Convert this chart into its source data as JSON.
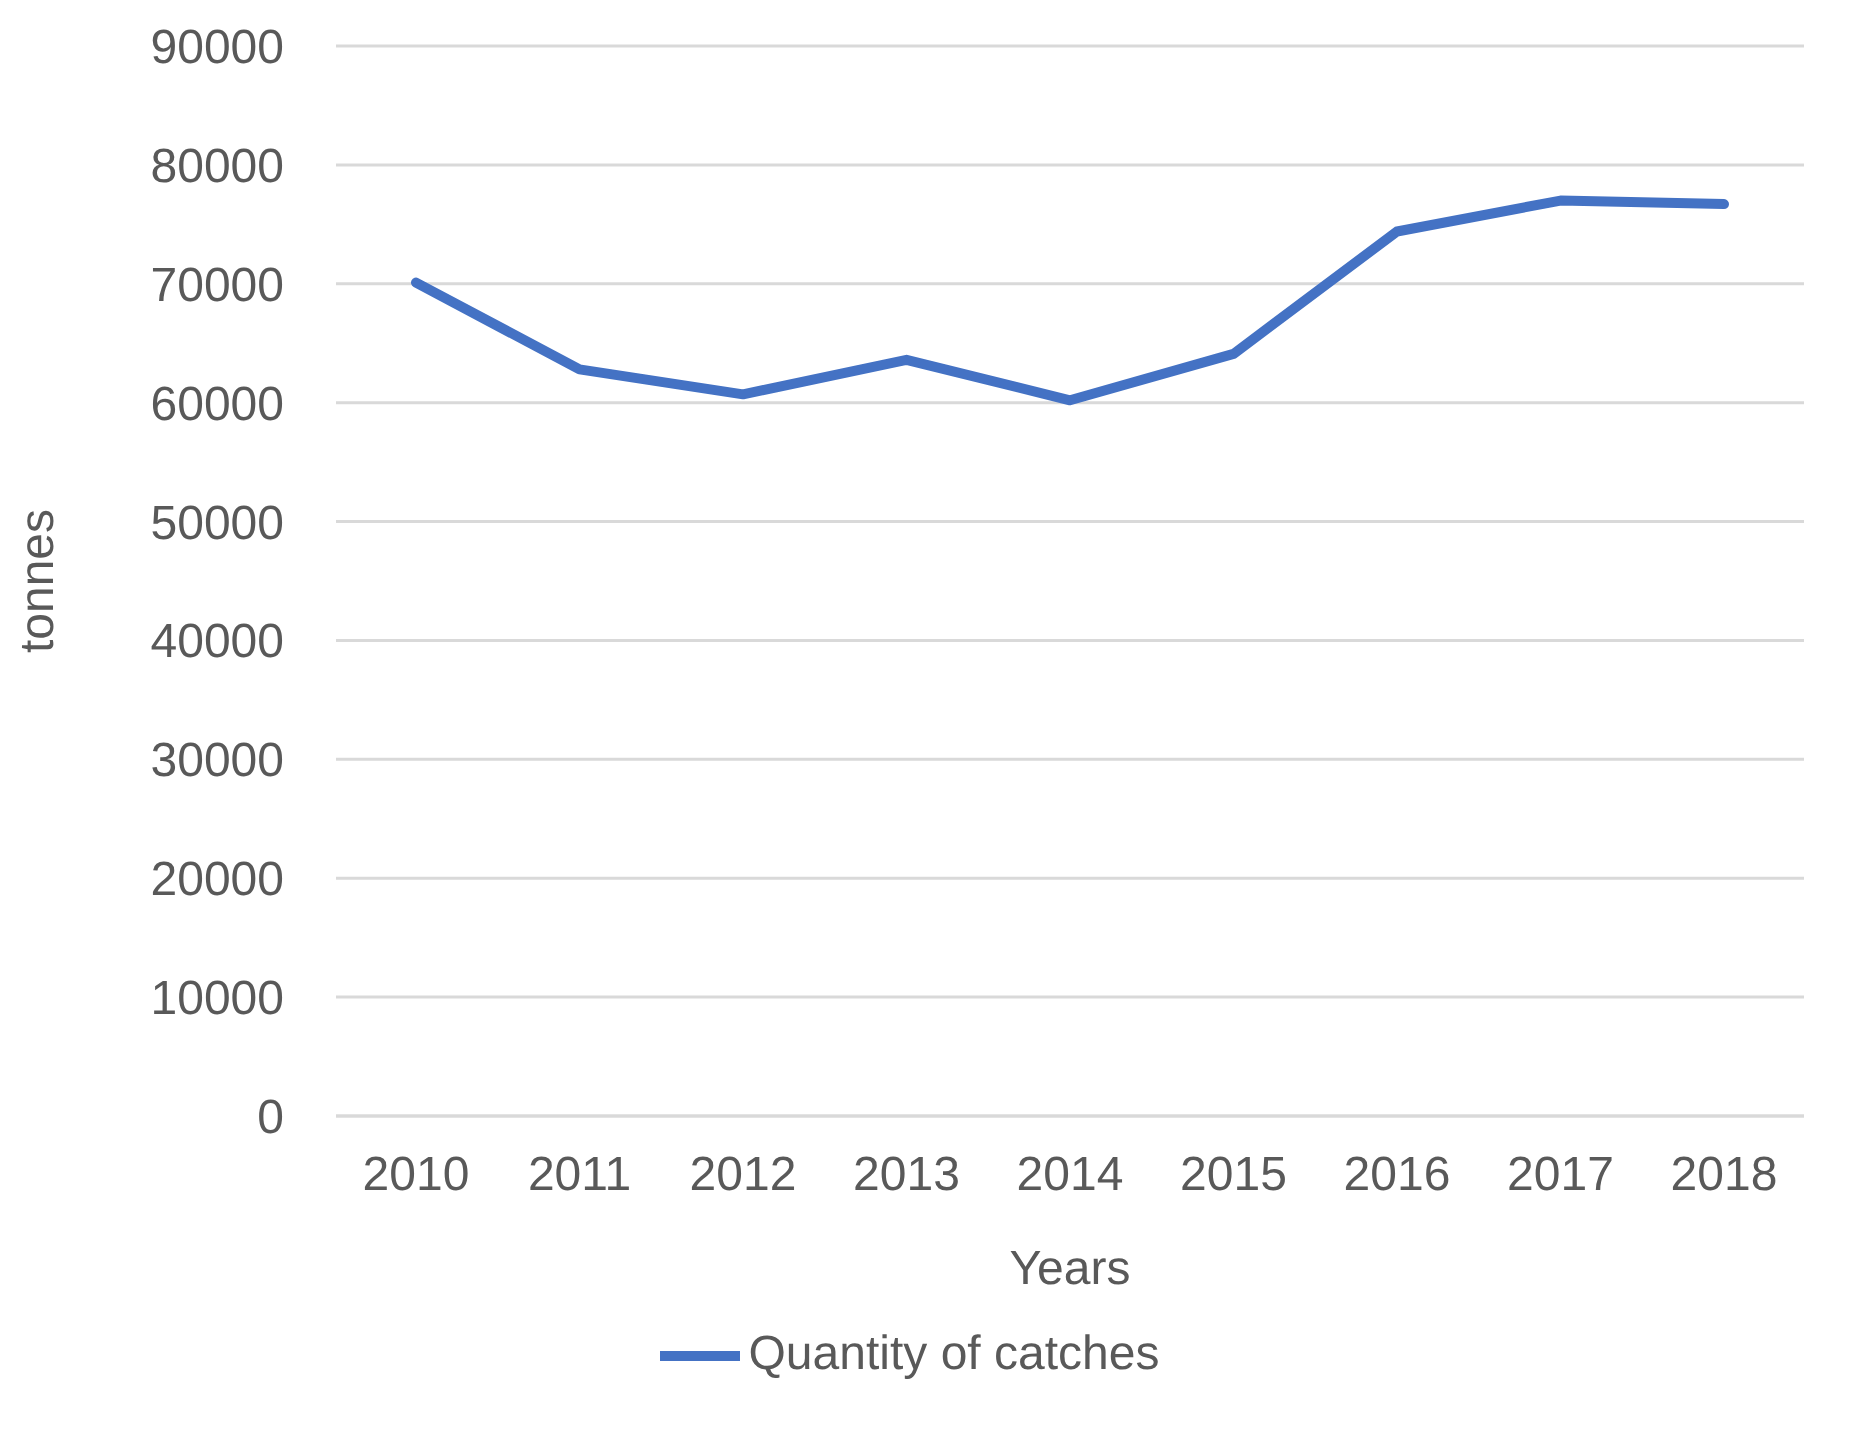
{
  "chart_data": {
    "type": "line",
    "xlabel": "Years",
    "ylabel": "tonnes",
    "categories": [
      "2010",
      "2011",
      "2012",
      "2013",
      "2014",
      "2015",
      "2016",
      "2017",
      "2018"
    ],
    "series": [
      {
        "name": "Quantity of catches",
        "color": "#4472c4",
        "values": [
          70100,
          62800,
          60700,
          63600,
          60200,
          64100,
          74400,
          77000,
          76700
        ]
      }
    ],
    "ylim": [
      0,
      90000
    ],
    "yticks": [
      0,
      10000,
      20000,
      30000,
      40000,
      50000,
      60000,
      70000,
      80000,
      90000
    ],
    "grid": "y",
    "legend": "bottom",
    "marker": "none",
    "line_style": "solid"
  }
}
